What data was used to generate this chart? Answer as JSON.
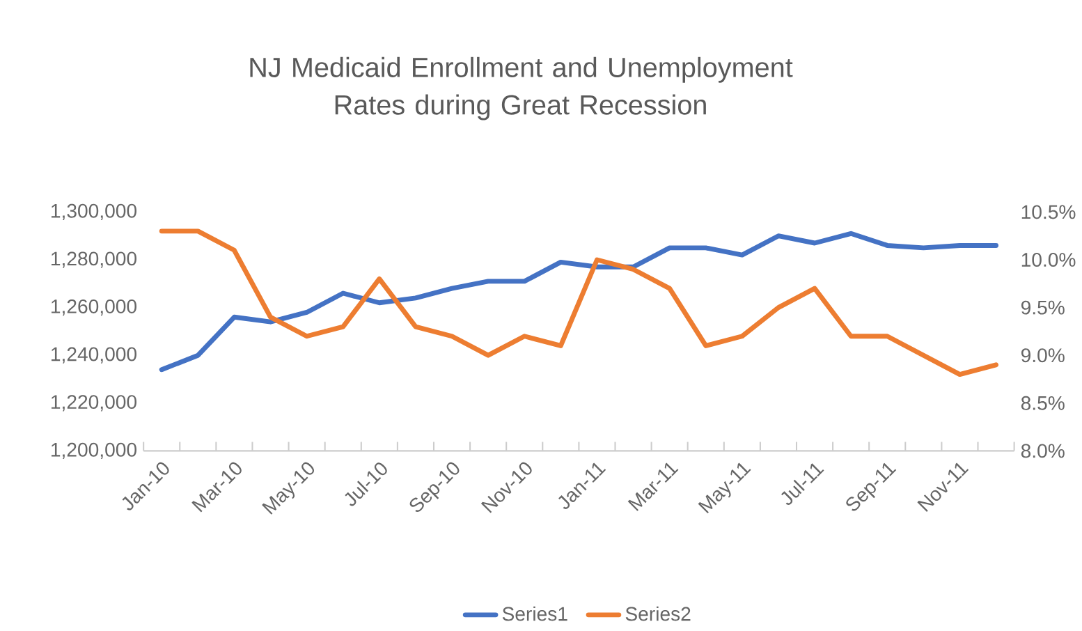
{
  "chart_data": {
    "type": "line",
    "title": "NJ Medicaid Enrollment and Unemployment Rates during Great Recession",
    "categories": [
      "Jan-10",
      null,
      "Mar-10",
      null,
      "May-10",
      null,
      "Jul-10",
      null,
      "Sep-10",
      null,
      "Nov-10",
      null,
      "Jan-11",
      null,
      "Mar-11",
      null,
      "May-11",
      null,
      "Jul-11",
      null,
      "Sep-11",
      null,
      "Nov-11",
      null
    ],
    "series": [
      {
        "name": "Series1",
        "color": "#4472c4",
        "values": [
          1234000,
          1240000,
          1256000,
          1254000,
          1258000,
          1266000,
          1262000,
          1264000,
          1268000,
          1271000,
          1271000,
          1279000,
          1277000,
          1277000,
          1285000,
          1285000,
          1282000,
          1290000,
          1287000,
          1291000,
          1286000,
          1285000,
          1286000,
          1286000
        ]
      },
      {
        "name": "Series2",
        "color": "#ed7d31",
        "axis": "y2",
        "values": [
          10.3,
          10.3,
          10.1,
          9.4,
          9.2,
          9.3,
          9.8,
          9.3,
          9.2,
          9.0,
          9.2,
          9.1,
          10.0,
          9.9,
          9.7,
          9.1,
          9.2,
          9.5,
          9.7,
          9.2,
          9.2,
          9.0,
          8.8,
          8.9
        ]
      }
    ],
    "ylim": [
      1200000,
      1300000
    ],
    "yticks": [
      {
        "value": 1200000,
        "label": "1,200,000"
      },
      {
        "value": 1220000,
        "label": "1,220,000"
      },
      {
        "value": 1240000,
        "label": "1,240,000"
      },
      {
        "value": 1260000,
        "label": "1,260,000"
      },
      {
        "value": 1280000,
        "label": "1,280,000"
      },
      {
        "value": 1300000,
        "label": "1,300,000"
      }
    ],
    "y2lim": [
      8.0,
      10.5
    ],
    "y2ticks": [
      {
        "value": 8.0,
        "label": "8.0%"
      },
      {
        "value": 8.5,
        "label": "8.5%"
      },
      {
        "value": 9.0,
        "label": "9.0%"
      },
      {
        "value": 9.5,
        "label": "9.5%"
      },
      {
        "value": 10.0,
        "label": "10.0%"
      },
      {
        "value": 10.5,
        "label": "10.5%"
      }
    ],
    "legend": "bottom",
    "marker": "none",
    "line_style": "solid"
  }
}
